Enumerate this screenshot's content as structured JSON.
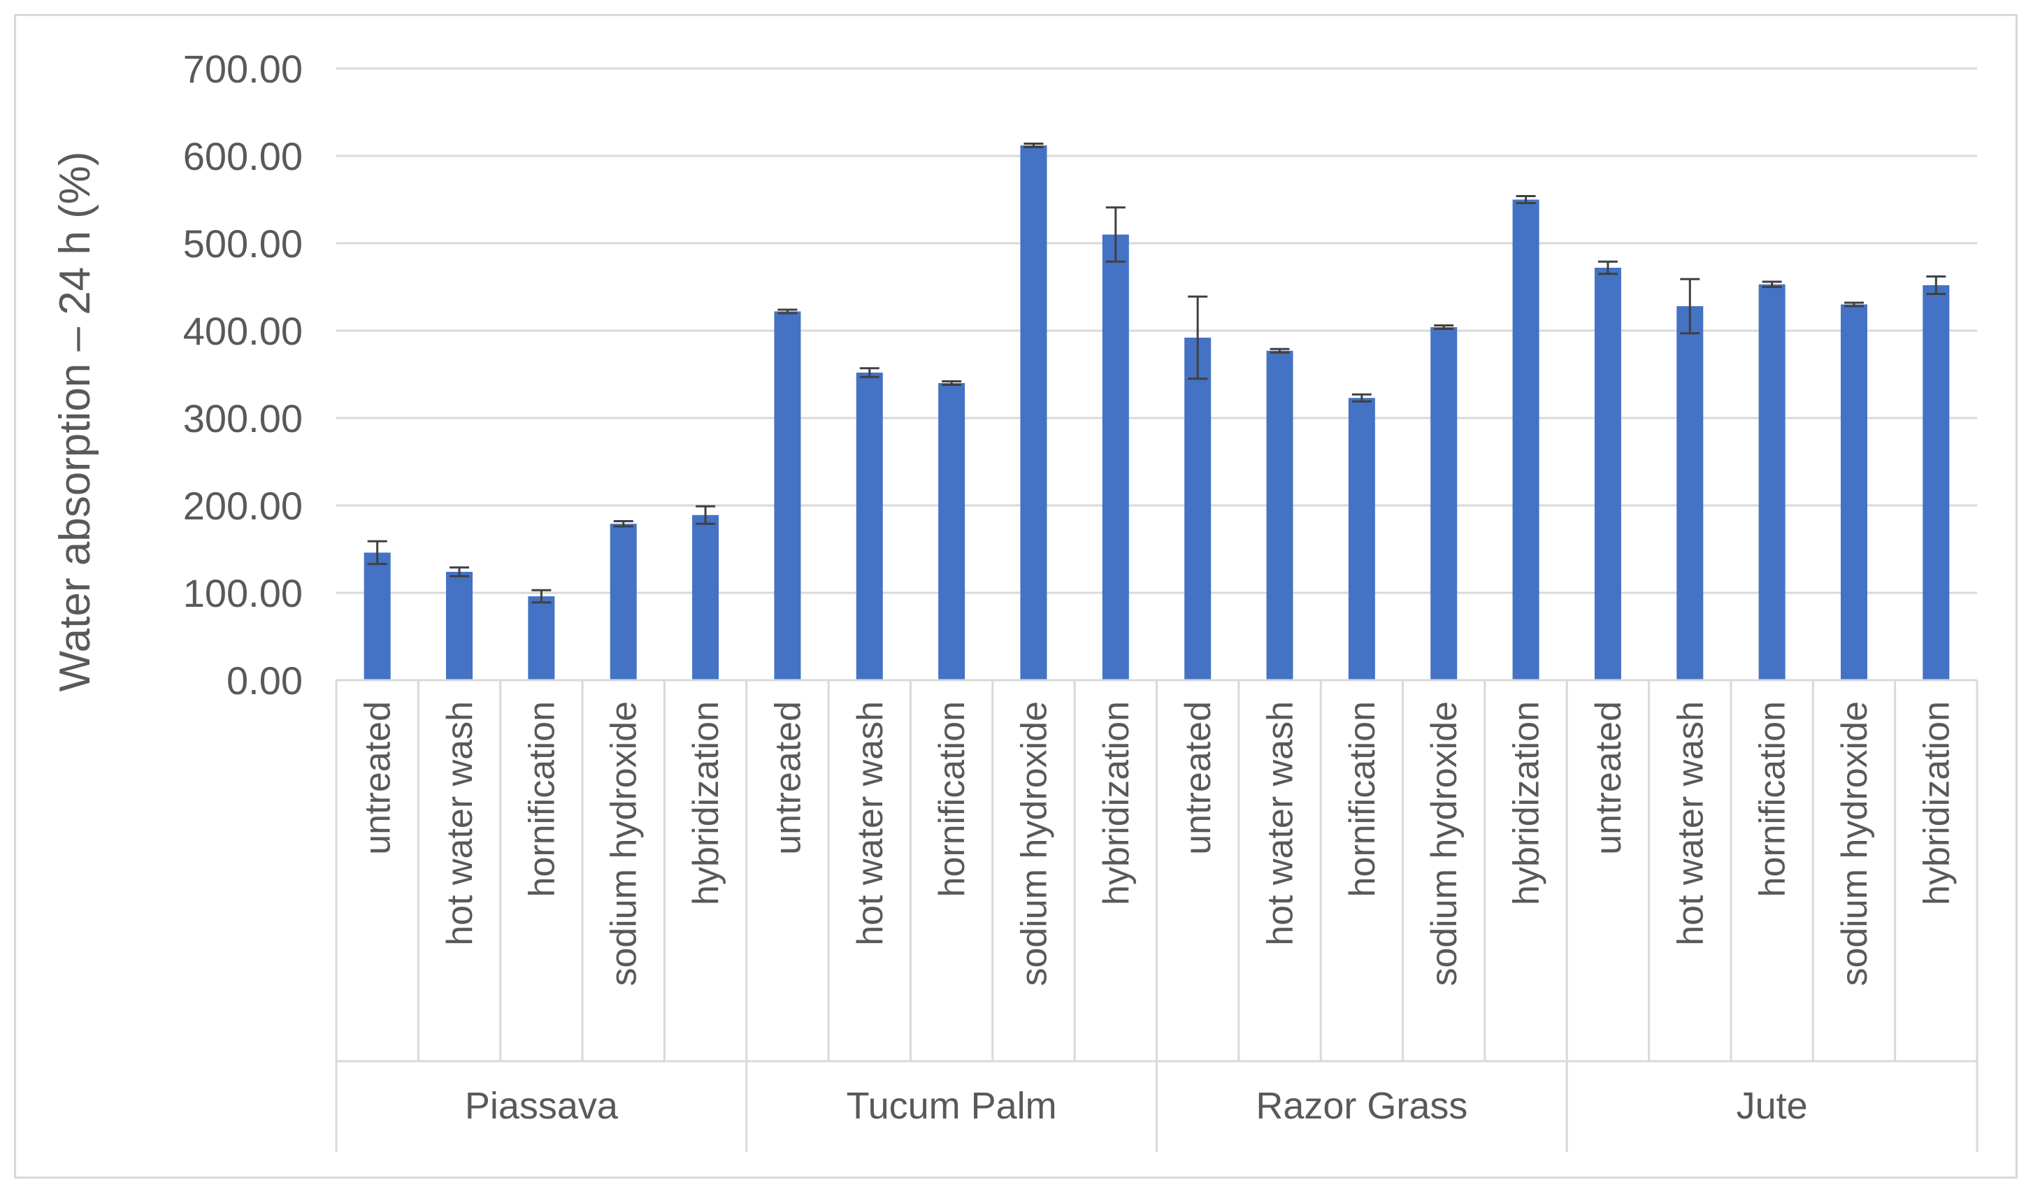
{
  "chart_data": {
    "type": "bar",
    "title": "",
    "ylabel": "Water absorption – 24 h (%)",
    "xlabel": "",
    "ylim": [
      0,
      700
    ],
    "yticks": [
      "0.00",
      "100.00",
      "200.00",
      "300.00",
      "400.00",
      "500.00",
      "600.00",
      "700.00"
    ],
    "grid": true,
    "legend": "none",
    "bar_color": "#4472c4",
    "error_bar_color": "#404040",
    "groups": [
      {
        "name": "Piassava",
        "categories": [
          "untreated",
          "hot water wash",
          "hornification",
          "sodium hydroxide",
          "hybridization"
        ],
        "values": [
          146,
          124,
          96,
          179,
          189
        ],
        "errors": [
          13,
          5,
          7,
          3,
          10
        ]
      },
      {
        "name": "Tucum Palm",
        "categories": [
          "untreated",
          "hot water wash",
          "hornification",
          "sodium hydroxide",
          "hybridization"
        ],
        "values": [
          422,
          352,
          340,
          612,
          510
        ],
        "errors": [
          2,
          5,
          2,
          2,
          31
        ]
      },
      {
        "name": "Razor Grass",
        "categories": [
          "untreated",
          "hot water wash",
          "hornification",
          "sodium hydroxide",
          "hybridization"
        ],
        "values": [
          392,
          377,
          323,
          404,
          550
        ],
        "errors": [
          47,
          2,
          4,
          2,
          4
        ]
      },
      {
        "name": "Jute",
        "categories": [
          "untreated",
          "hot water wash",
          "hornification",
          "sodium hydroxide",
          "hybridization"
        ],
        "values": [
          472,
          428,
          453,
          430,
          452
        ],
        "errors": [
          7,
          31,
          3,
          2,
          10
        ]
      }
    ]
  }
}
